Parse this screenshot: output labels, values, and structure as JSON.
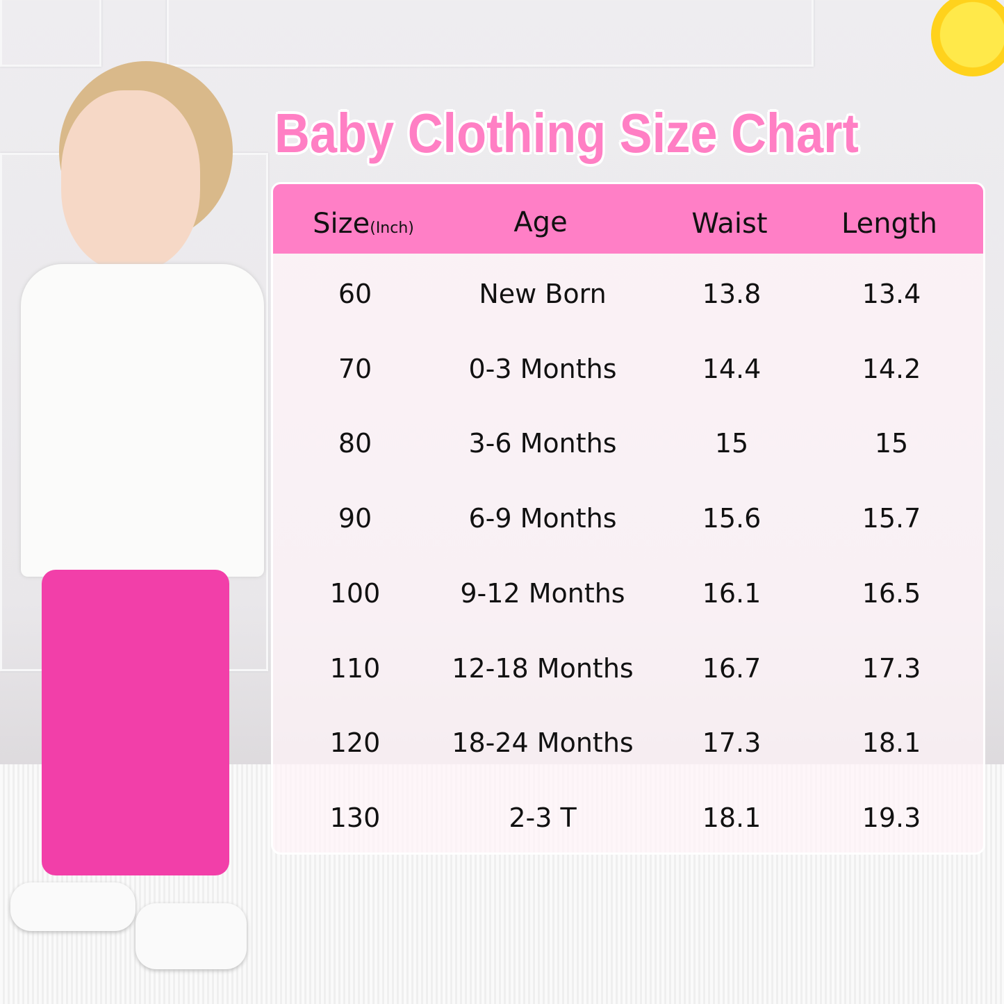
{
  "title": "Baby Clothing Size Chart",
  "colors": {
    "accent": "#ff7fc6",
    "title": "#ff7fc4"
  },
  "table": {
    "headers": [
      {
        "label": "Size",
        "unit": "(Inch)"
      },
      {
        "label": "Age"
      },
      {
        "label": "Waist"
      },
      {
        "label": "Length"
      }
    ],
    "rows": [
      [
        "60",
        "New Born",
        "13.8",
        "13.4"
      ],
      [
        "70",
        "0-3 Months",
        "14.4",
        "14.2"
      ],
      [
        "80",
        "3-6 Months",
        "15",
        "15"
      ],
      [
        "90",
        "6-9 Months",
        "15.6",
        "15.7"
      ],
      [
        "100",
        "9-12 Months",
        "16.1",
        "16.5"
      ],
      [
        "110",
        "12-18 Months",
        "16.7",
        "17.3"
      ],
      [
        "120",
        "18-24 Months",
        "17.3",
        "18.1"
      ],
      [
        "130",
        "2-3 T",
        "18.1",
        "19.3"
      ]
    ]
  },
  "decor": {
    "sun": "sun-icon",
    "model": "toddler-photo"
  }
}
